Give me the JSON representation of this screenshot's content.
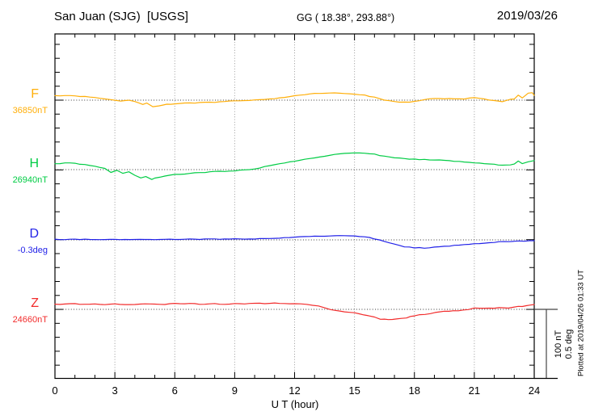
{
  "header": {
    "station_title": "San Juan (SJG)  [USGS]",
    "coords": "GG ( 18.38°, 293.88°)",
    "date": "2019/03/26"
  },
  "axis": {
    "xlabel": "U T (hour)",
    "hour_labels": [
      "0",
      "3",
      "6",
      "9",
      "12",
      "15",
      "18",
      "21",
      "24"
    ]
  },
  "scalebar": {
    "nt_label": "100 nT",
    "deg_label": "0.5 deg"
  },
  "plot_note": "Plotted at 2019/04/26 01:33 UT",
  "chart_data": {
    "type": "line",
    "title": "San Juan (SJG) [USGS] magnetogram for 2019/03/26",
    "xlabel": "U T (hour)",
    "x_range": [
      0,
      24
    ],
    "x_ticks_major": [
      0,
      3,
      6,
      9,
      12,
      15,
      18,
      21,
      24
    ],
    "x_ticks_minor_every_hours": 1,
    "grid": "gray dotted vertical lines every 3 h; black dotted horizontal line at each channel baseline",
    "legend_position": "left margin, one colored label per channel",
    "scale_per_division": {
      "field_nT": 100,
      "declination_deg": 0.5
    },
    "series": [
      {
        "name": "F",
        "unit": "nT",
        "color": "#FFAF0A",
        "baseline_value": 36850,
        "baseline_label": "36850nT",
        "points": [
          [
            0,
            36856
          ],
          [
            0.5,
            36857
          ],
          [
            1,
            36856
          ],
          [
            1.5,
            36855
          ],
          [
            2,
            36854
          ],
          [
            2.5,
            36852
          ],
          [
            3,
            36850
          ],
          [
            3.3,
            36849
          ],
          [
            3.7,
            36850
          ],
          [
            4,
            36848
          ],
          [
            4.4,
            36844
          ],
          [
            4.6,
            36846
          ],
          [
            4.9,
            36841
          ],
          [
            5.2,
            36842
          ],
          [
            5.6,
            36844
          ],
          [
            6,
            36845
          ],
          [
            7,
            36846
          ],
          [
            8,
            36847
          ],
          [
            9,
            36849
          ],
          [
            10,
            36850
          ],
          [
            11,
            36852
          ],
          [
            12,
            36856
          ],
          [
            13,
            36860
          ],
          [
            14,
            36860
          ],
          [
            15,
            36859
          ],
          [
            15.5,
            36857
          ],
          [
            16,
            36854
          ],
          [
            16.5,
            36850
          ],
          [
            17,
            36848
          ],
          [
            17.5,
            36847
          ],
          [
            18,
            36848
          ],
          [
            18.5,
            36851
          ],
          [
            19,
            36852
          ],
          [
            20,
            36852
          ],
          [
            20.5,
            36852
          ],
          [
            21,
            36854
          ],
          [
            21.5,
            36852
          ],
          [
            22,
            36849
          ],
          [
            22.4,
            36848
          ],
          [
            22.8,
            36851
          ],
          [
            23,
            36852
          ],
          [
            23.2,
            36857
          ],
          [
            23.4,
            36853
          ],
          [
            23.7,
            36860
          ],
          [
            23.9,
            36861
          ],
          [
            24,
            36857
          ]
        ]
      },
      {
        "name": "H",
        "unit": "nT",
        "color": "#00CC44",
        "baseline_value": 26940,
        "baseline_label": "26940nT",
        "points": [
          [
            0,
            26948
          ],
          [
            0.5,
            26950
          ],
          [
            1,
            26949
          ],
          [
            1.5,
            26947
          ],
          [
            2,
            26945
          ],
          [
            2.5,
            26942
          ],
          [
            2.8,
            26936
          ],
          [
            3.1,
            26939
          ],
          [
            3.4,
            26935
          ],
          [
            3.7,
            26937
          ],
          [
            4,
            26932
          ],
          [
            4.3,
            26928
          ],
          [
            4.55,
            26930
          ],
          [
            4.85,
            26926
          ],
          [
            5,
            26928
          ],
          [
            5.5,
            26931
          ],
          [
            6,
            26933
          ],
          [
            6.5,
            26934
          ],
          [
            7,
            26935
          ],
          [
            8,
            26937
          ],
          [
            9,
            26938
          ],
          [
            10,
            26941
          ],
          [
            11,
            26947
          ],
          [
            12,
            26952
          ],
          [
            13,
            26957
          ],
          [
            14,
            26962
          ],
          [
            14.5,
            26963
          ],
          [
            15,
            26964
          ],
          [
            15.5,
            26964
          ],
          [
            16,
            26962
          ],
          [
            16.5,
            26959
          ],
          [
            17,
            26957
          ],
          [
            17.5,
            26956
          ],
          [
            18,
            26955
          ],
          [
            19,
            26954
          ],
          [
            19.5,
            26953
          ],
          [
            20,
            26952
          ],
          [
            20.5,
            26951
          ],
          [
            21,
            26950
          ],
          [
            21.5,
            26949
          ],
          [
            22,
            26948
          ],
          [
            22.4,
            26946
          ],
          [
            22.8,
            26947
          ],
          [
            23,
            26948
          ],
          [
            23.2,
            26952
          ],
          [
            23.4,
            26949
          ],
          [
            23.7,
            26951
          ],
          [
            24,
            26953
          ]
        ]
      },
      {
        "name": "D",
        "unit": "deg",
        "color": "#2222E8",
        "baseline_value": -0.3,
        "baseline_label": "-0.3deg",
        "points": [
          [
            0,
            -0.297
          ],
          [
            1,
            -0.296
          ],
          [
            2,
            -0.297
          ],
          [
            3,
            -0.296
          ],
          [
            4,
            -0.297
          ],
          [
            5,
            -0.296
          ],
          [
            6,
            -0.295
          ],
          [
            7,
            -0.296
          ],
          [
            8,
            -0.295
          ],
          [
            9,
            -0.294
          ],
          [
            10,
            -0.293
          ],
          [
            11,
            -0.29
          ],
          [
            12,
            -0.281
          ],
          [
            13,
            -0.273
          ],
          [
            14,
            -0.271
          ],
          [
            15,
            -0.271
          ],
          [
            15.5,
            -0.277
          ],
          [
            16,
            -0.292
          ],
          [
            16.5,
            -0.312
          ],
          [
            17,
            -0.331
          ],
          [
            17.5,
            -0.348
          ],
          [
            18,
            -0.356
          ],
          [
            18.5,
            -0.358
          ],
          [
            19,
            -0.354
          ],
          [
            19.5,
            -0.348
          ],
          [
            20,
            -0.341
          ],
          [
            20.5,
            -0.334
          ],
          [
            21,
            -0.327
          ],
          [
            21.5,
            -0.322
          ],
          [
            22,
            -0.317
          ],
          [
            22.5,
            -0.313
          ],
          [
            23,
            -0.31
          ],
          [
            23.5,
            -0.308
          ],
          [
            24,
            -0.306
          ]
        ]
      },
      {
        "name": "Z",
        "unit": "nT",
        "color": "#F22C2C",
        "baseline_value": 24660,
        "baseline_label": "24660nT",
        "points": [
          [
            0,
            24667
          ],
          [
            0.5,
            24668
          ],
          [
            1,
            24668
          ],
          [
            1.5,
            24667
          ],
          [
            2,
            24668
          ],
          [
            2.5,
            24667
          ],
          [
            3,
            24668
          ],
          [
            3.5,
            24667
          ],
          [
            4,
            24667
          ],
          [
            4.5,
            24668
          ],
          [
            5,
            24668
          ],
          [
            5.5,
            24667
          ],
          [
            6,
            24669
          ],
          [
            6.5,
            24668
          ],
          [
            7,
            24668
          ],
          [
            7.5,
            24667
          ],
          [
            8,
            24668
          ],
          [
            8.5,
            24667
          ],
          [
            9,
            24668
          ],
          [
            9.5,
            24668
          ],
          [
            10,
            24669
          ],
          [
            10.5,
            24668
          ],
          [
            11,
            24669
          ],
          [
            11.5,
            24668
          ],
          [
            12,
            24668
          ],
          [
            12.6,
            24667
          ],
          [
            13.2,
            24665
          ],
          [
            13.8,
            24660
          ],
          [
            14.5,
            24656
          ],
          [
            15,
            24655
          ],
          [
            15.7,
            24651
          ],
          [
            16.3,
            24646
          ],
          [
            16.7,
            24645
          ],
          [
            17.1,
            24646
          ],
          [
            17.6,
            24648
          ],
          [
            18,
            24651
          ],
          [
            18.8,
            24654
          ],
          [
            19.5,
            24657
          ],
          [
            20.2,
            24658
          ],
          [
            20.7,
            24660
          ],
          [
            21,
            24662
          ],
          [
            21.5,
            24662
          ],
          [
            22,
            24662
          ],
          [
            22.7,
            24662
          ],
          [
            23.2,
            24664
          ],
          [
            23.6,
            24665
          ],
          [
            24,
            24667
          ]
        ]
      }
    ]
  }
}
